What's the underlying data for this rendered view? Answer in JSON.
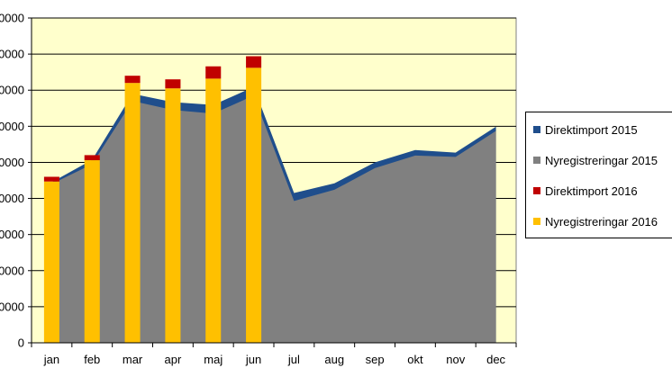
{
  "chart_data": {
    "type": "area",
    "categories": [
      "jan",
      "feb",
      "mar",
      "apr",
      "maj",
      "jun",
      "jul",
      "aug",
      "sep",
      "okt",
      "nov",
      "dec"
    ],
    "y_tick_labels": [
      "0",
      "0000",
      "0000",
      "0000",
      "0000",
      "0000",
      "0000",
      "0000",
      "0000",
      "0000"
    ],
    "ylim": [
      0,
      9
    ],
    "grid": true,
    "plot_background": "#ffffcc",
    "legend_position": "right",
    "series": [
      {
        "name": "Direktimport 2015",
        "type": "area",
        "color": "#1f4e8c",
        "values": [
          0.05,
          0.12,
          0.2,
          0.22,
          0.24,
          0.24,
          0.22,
          0.18,
          0.16,
          0.15,
          0.12,
          0.12
        ]
      },
      {
        "name": "Nyregistreringar 2015",
        "type": "area",
        "color": "#808080",
        "values": [
          4.4,
          4.95,
          6.7,
          6.45,
          6.35,
          6.85,
          3.93,
          4.24,
          4.84,
          5.19,
          5.15,
          5.87
        ]
      },
      {
        "name": "Direktimport 2016",
        "type": "bar",
        "color": "#c00000",
        "values": [
          0.13,
          0.14,
          0.2,
          0.25,
          0.34,
          0.32,
          null,
          null,
          null,
          null,
          null,
          null
        ]
      },
      {
        "name": "Nyregistreringar 2016",
        "type": "bar",
        "color": "#ffc000",
        "values": [
          4.47,
          5.06,
          7.2,
          7.05,
          7.32,
          7.62,
          null,
          null,
          null,
          null,
          null,
          null
        ]
      }
    ]
  }
}
